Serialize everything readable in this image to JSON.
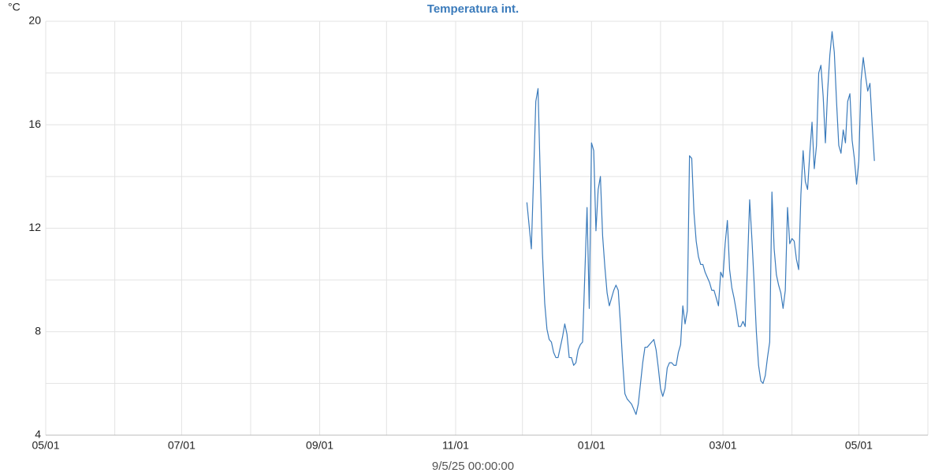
{
  "chart_data": {
    "type": "line",
    "title": "Temperatura int.",
    "unit": "°C",
    "footer": "9/5/25 00:00:00",
    "color": "#3b7bbb",
    "grid": true,
    "xlim": [
      "2024-05-01",
      "2025-06-01"
    ],
    "xticks": [
      {
        "value": "2024-05-01",
        "label": "05/01"
      },
      {
        "value": "2024-06-01",
        "label": null
      },
      {
        "value": "2024-07-01",
        "label": "07/01"
      },
      {
        "value": "2024-08-01",
        "label": null
      },
      {
        "value": "2024-09-01",
        "label": "09/01"
      },
      {
        "value": "2024-10-01",
        "label": null
      },
      {
        "value": "2024-11-01",
        "label": "11/01"
      },
      {
        "value": "2024-12-01",
        "label": null
      },
      {
        "value": "2025-01-01",
        "label": "01/01"
      },
      {
        "value": "2025-02-01",
        "label": null
      },
      {
        "value": "2025-03-01",
        "label": "03/01"
      },
      {
        "value": "2025-04-01",
        "label": null
      },
      {
        "value": "2025-05-01",
        "label": "05/01"
      },
      {
        "value": "2025-06-01",
        "label": null
      }
    ],
    "ylim": [
      4,
      20
    ],
    "yticks": [
      4,
      {
        "value": 6,
        "label": null
      },
      8,
      {
        "value": 10,
        "label": null
      },
      12,
      {
        "value": 14,
        "label": null
      },
      16,
      {
        "value": 18,
        "label": null
      },
      20
    ],
    "x": [
      "2024-12-03",
      "2024-12-04",
      "2024-12-05",
      "2024-12-06",
      "2024-12-07",
      "2024-12-08",
      "2024-12-09",
      "2024-12-10",
      "2024-12-11",
      "2024-12-12",
      "2024-12-13",
      "2024-12-14",
      "2024-12-15",
      "2024-12-16",
      "2024-12-17",
      "2024-12-18",
      "2024-12-19",
      "2024-12-20",
      "2024-12-21",
      "2024-12-22",
      "2024-12-23",
      "2024-12-24",
      "2024-12-25",
      "2024-12-26",
      "2024-12-27",
      "2024-12-28",
      "2024-12-29",
      "2024-12-30",
      "2024-12-31",
      "2025-01-01",
      "2025-01-02",
      "2025-01-03",
      "2025-01-04",
      "2025-01-05",
      "2025-01-06",
      "2025-01-07",
      "2025-01-08",
      "2025-01-09",
      "2025-01-10",
      "2025-01-11",
      "2025-01-12",
      "2025-01-13",
      "2025-01-14",
      "2025-01-15",
      "2025-01-16",
      "2025-01-17",
      "2025-01-18",
      "2025-01-19",
      "2025-01-20",
      "2025-01-21",
      "2025-01-22",
      "2025-01-23",
      "2025-01-24",
      "2025-01-25",
      "2025-01-26",
      "2025-01-27",
      "2025-01-28",
      "2025-01-29",
      "2025-01-30",
      "2025-01-31",
      "2025-02-01",
      "2025-02-02",
      "2025-02-03",
      "2025-02-04",
      "2025-02-05",
      "2025-02-06",
      "2025-02-07",
      "2025-02-08",
      "2025-02-09",
      "2025-02-10",
      "2025-02-11",
      "2025-02-12",
      "2025-02-13",
      "2025-02-14",
      "2025-02-15",
      "2025-02-16",
      "2025-02-17",
      "2025-02-18",
      "2025-02-19",
      "2025-02-20",
      "2025-02-21",
      "2025-02-22",
      "2025-02-23",
      "2025-02-24",
      "2025-02-25",
      "2025-02-26",
      "2025-02-27",
      "2025-02-28",
      "2025-03-01",
      "2025-03-02",
      "2025-03-03",
      "2025-03-04",
      "2025-03-05",
      "2025-03-06",
      "2025-03-07",
      "2025-03-08",
      "2025-03-09",
      "2025-03-10",
      "2025-03-11",
      "2025-03-12",
      "2025-03-13",
      "2025-03-14",
      "2025-03-15",
      "2025-03-16",
      "2025-03-17",
      "2025-03-18",
      "2025-03-19",
      "2025-03-20",
      "2025-03-21",
      "2025-03-22",
      "2025-03-23",
      "2025-03-24",
      "2025-03-25",
      "2025-03-26",
      "2025-03-27",
      "2025-03-28",
      "2025-03-29",
      "2025-03-30",
      "2025-03-31",
      "2025-04-01",
      "2025-04-02",
      "2025-04-03",
      "2025-04-04",
      "2025-04-05",
      "2025-04-06",
      "2025-04-07",
      "2025-04-08",
      "2025-04-09",
      "2025-04-10",
      "2025-04-11",
      "2025-04-12",
      "2025-04-13",
      "2025-04-14",
      "2025-04-15",
      "2025-04-16",
      "2025-04-17",
      "2025-04-18",
      "2025-04-19",
      "2025-04-20",
      "2025-04-21",
      "2025-04-22",
      "2025-04-23",
      "2025-04-24",
      "2025-04-25",
      "2025-04-26",
      "2025-04-27",
      "2025-04-28",
      "2025-04-29",
      "2025-04-30",
      "2025-05-01",
      "2025-05-02",
      "2025-05-03",
      "2025-05-04",
      "2025-05-05",
      "2025-05-06",
      "2025-05-07",
      "2025-05-08"
    ],
    "values": [
      13.0,
      12.1,
      11.2,
      14.0,
      16.9,
      17.4,
      14.0,
      11.0,
      9.1,
      8.1,
      7.7,
      7.6,
      7.2,
      7.0,
      7.0,
      7.4,
      7.8,
      8.3,
      7.9,
      7.0,
      7.0,
      6.7,
      6.8,
      7.3,
      7.5,
      7.6,
      10.2,
      12.8,
      8.9,
      15.3,
      15.0,
      11.9,
      13.5,
      14.0,
      11.7,
      10.5,
      9.5,
      9.0,
      9.3,
      9.6,
      9.8,
      9.6,
      8.3,
      6.8,
      5.6,
      5.4,
      5.3,
      5.2,
      5.0,
      4.8,
      5.2,
      6.0,
      6.8,
      7.4,
      7.4,
      7.5,
      7.6,
      7.7,
      7.3,
      6.6,
      5.8,
      5.5,
      5.8,
      6.6,
      6.8,
      6.8,
      6.7,
      6.7,
      7.2,
      7.5,
      9.0,
      8.3,
      8.8,
      14.8,
      14.7,
      12.6,
      11.5,
      10.9,
      10.6,
      10.6,
      10.3,
      10.1,
      9.9,
      9.6,
      9.6,
      9.3,
      9.0,
      10.3,
      10.1,
      11.4,
      12.3,
      10.4,
      9.7,
      9.3,
      8.8,
      8.2,
      8.2,
      8.4,
      8.2,
      10.5,
      13.1,
      11.6,
      9.9,
      8.0,
      6.7,
      6.1,
      6.0,
      6.3,
      7.0,
      7.6,
      13.4,
      11.2,
      10.2,
      9.8,
      9.5,
      8.9,
      9.6,
      12.8,
      11.4,
      11.6,
      11.5,
      10.8,
      10.4,
      13.3,
      15.0,
      13.8,
      13.5,
      14.9,
      16.1,
      14.3,
      15.2,
      18.0,
      18.3,
      17.1,
      15.3,
      17.3,
      18.7,
      19.6,
      18.8,
      16.9,
      15.2,
      14.9,
      15.8,
      15.3,
      16.9,
      17.2,
      15.4,
      14.7,
      13.7,
      14.6,
      17.7,
      18.6,
      17.9,
      17.3,
      17.6,
      16.0,
      14.6
    ]
  }
}
